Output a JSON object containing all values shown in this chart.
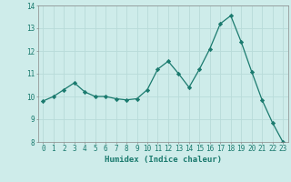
{
  "x": [
    0,
    1,
    2,
    3,
    4,
    5,
    6,
    7,
    8,
    9,
    10,
    11,
    12,
    13,
    14,
    15,
    16,
    17,
    18,
    19,
    20,
    21,
    22,
    23
  ],
  "y": [
    9.8,
    10.0,
    10.3,
    10.6,
    10.2,
    10.0,
    10.0,
    9.9,
    9.85,
    9.9,
    10.3,
    11.2,
    11.55,
    11.0,
    10.4,
    11.2,
    12.1,
    13.2,
    13.55,
    12.4,
    11.1,
    9.85,
    8.85,
    8.0
  ],
  "xlabel": "Humidex (Indice chaleur)",
  "ylim": [
    8,
    14
  ],
  "xlim": [
    -0.5,
    23.5
  ],
  "yticks": [
    8,
    9,
    10,
    11,
    12,
    13,
    14
  ],
  "xticks": [
    0,
    1,
    2,
    3,
    4,
    5,
    6,
    7,
    8,
    9,
    10,
    11,
    12,
    13,
    14,
    15,
    16,
    17,
    18,
    19,
    20,
    21,
    22,
    23
  ],
  "line_color": "#1a7a6e",
  "marker": "D",
  "marker_size": 2.2,
  "bg_color": "#ceecea",
  "grid_color": "#b8dbd9",
  "tick_fontsize": 5.5,
  "label_fontsize": 6.5
}
